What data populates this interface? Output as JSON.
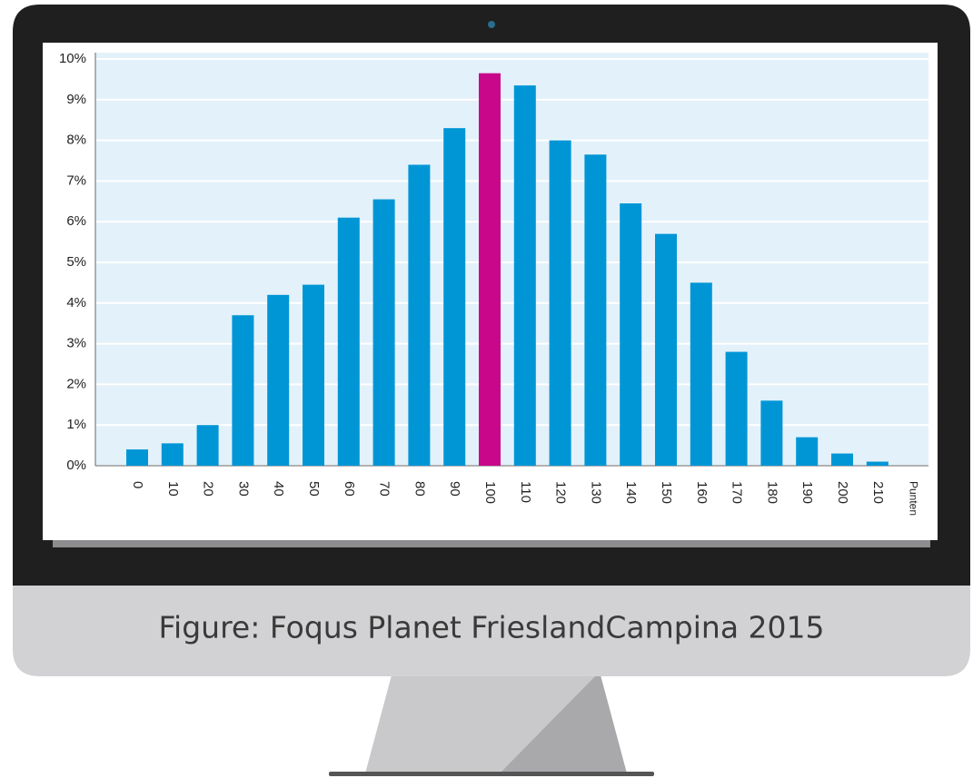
{
  "chart_data": {
    "type": "bar",
    "categories": [
      "0",
      "10",
      "20",
      "30",
      "40",
      "50",
      "60",
      "70",
      "80",
      "90",
      "100",
      "110",
      "120",
      "130",
      "140",
      "150",
      "160",
      "170",
      "180",
      "190",
      "200",
      "210"
    ],
    "values": [
      0.4,
      0.55,
      1.0,
      3.7,
      4.2,
      4.45,
      6.1,
      6.55,
      7.4,
      8.3,
      9.65,
      9.35,
      8.0,
      7.65,
      6.45,
      5.7,
      4.5,
      2.8,
      1.6,
      0.7,
      0.3,
      0.1
    ],
    "colors": [
      "#0096d6",
      "#0096d6",
      "#0096d6",
      "#0096d6",
      "#0096d6",
      "#0096d6",
      "#0096d6",
      "#0096d6",
      "#0096d6",
      "#0096d6",
      "#c8078a",
      "#0096d6",
      "#0096d6",
      "#0096d6",
      "#0096d6",
      "#0096d6",
      "#0096d6",
      "#0096d6",
      "#0096d6",
      "#0096d6",
      "#0096d6",
      "#0096d6"
    ],
    "x_label": "Punten",
    "ylim": [
      0,
      10
    ],
    "yticks": [
      {
        "value": 0,
        "label": "0%"
      },
      {
        "value": 1,
        "label": "1%"
      },
      {
        "value": 2,
        "label": "2%"
      },
      {
        "value": 3,
        "label": "3%"
      },
      {
        "value": 4,
        "label": "4%"
      },
      {
        "value": 5,
        "label": "5%"
      },
      {
        "value": 6,
        "label": "6%"
      },
      {
        "value": 7,
        "label": "7%"
      },
      {
        "value": 8,
        "label": "8%"
      },
      {
        "value": 9,
        "label": "9%"
      },
      {
        "value": 10,
        "label": "10%"
      }
    ],
    "grid": true
  },
  "caption": "Figure: Foqus Planet FrieslandCampina 2015"
}
